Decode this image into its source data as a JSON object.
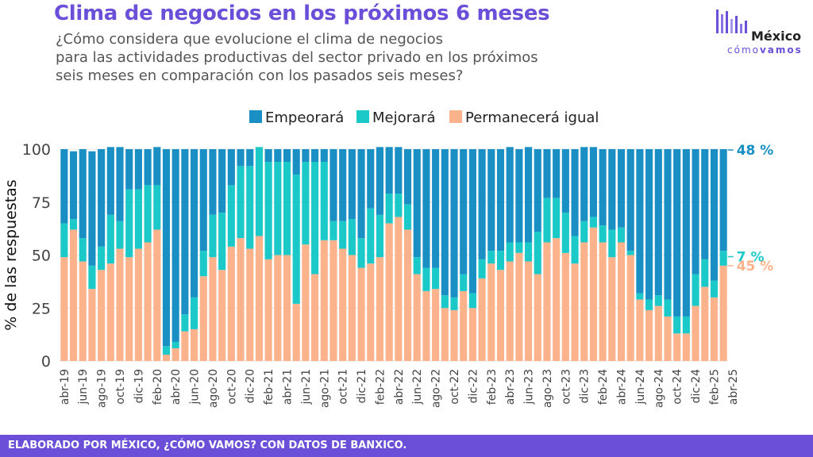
{
  "header": {
    "title": "Clima de negocios en los próximos 6 meses",
    "subtitle_lines": [
      "¿Cómo considera que evolucione el clima de negocios",
      "para las actividades productivas del sector privado en los próximos",
      "seis meses en comparación con los pasados seis meses?"
    ]
  },
  "logo": {
    "word1": "México",
    "word2_light": "cómo",
    "word2_bold": "vamos"
  },
  "footer": {
    "text": "ELABORADO POR MÉXICO, ¿CÓMO VAMOS? CON DATOS DE BANXICO."
  },
  "colors": {
    "empeorara": "#1a8fc4",
    "mejorara": "#1cc9c9",
    "permanecera": "#fcb38c",
    "title": "#6b4fd8"
  },
  "chart_data": {
    "type": "bar",
    "stacked": true,
    "ylabel": "% de las respuestas",
    "xlabel": "",
    "ylim": [
      0,
      100
    ],
    "yticks": [
      0,
      25,
      50,
      75,
      100
    ],
    "grid": true,
    "legend_position": "top-center",
    "x_start": "abr-19",
    "x_end": "abr-25",
    "xtick_labels": [
      "abr-19",
      "jun-19",
      "ago-19",
      "oct-19",
      "dic-19",
      "feb-20",
      "abr-20",
      "jun-20",
      "ago-20",
      "oct-20",
      "dic-20",
      "feb-21",
      "abr-21",
      "jun-21",
      "ago-21",
      "oct-21",
      "dic-21",
      "feb-22",
      "abr-22",
      "jun-22",
      "ago-22",
      "oct-22",
      "dic-22",
      "feb-23",
      "abr-23",
      "jun-23",
      "ago-23",
      "oct-23",
      "dic-23",
      "feb-24",
      "abr-24",
      "jun-24",
      "ago-24",
      "oct-24",
      "dic-24",
      "feb-25",
      "abr-25"
    ],
    "series": [
      {
        "name": "Permanecerá igual",
        "values": [
          49,
          62,
          47,
          34,
          43,
          46,
          53,
          49,
          53,
          56,
          62,
          3,
          6,
          14,
          15,
          40,
          49,
          43,
          54,
          58,
          53,
          59,
          48,
          50,
          50,
          27,
          55,
          41,
          57,
          57,
          53,
          50,
          44,
          46,
          49,
          65,
          68,
          62,
          41,
          33,
          34,
          25,
          24,
          33,
          25,
          39,
          46,
          43,
          47,
          51,
          47,
          41,
          56,
          58,
          51,
          46,
          56,
          63,
          56,
          49,
          56,
          50,
          29,
          24,
          26,
          21,
          13,
          13,
          26,
          35,
          30,
          45
        ]
      },
      {
        "name": "Mejorará",
        "values": [
          16,
          5,
          11,
          11,
          11,
          23,
          13,
          32,
          28,
          27,
          21,
          4,
          3,
          8,
          15,
          12,
          20,
          27,
          29,
          34,
          39,
          42,
          46,
          44,
          44,
          61,
          39,
          53,
          37,
          9,
          13,
          17,
          14,
          26,
          20,
          14,
          11,
          12,
          8,
          11,
          10,
          6,
          6,
          8,
          7,
          9,
          6,
          9,
          9,
          5,
          9,
          20,
          21,
          19,
          19,
          13,
          10,
          5,
          8,
          13,
          7,
          2,
          3,
          5,
          5,
          8,
          8,
          8,
          15,
          13,
          8,
          7
        ]
      },
      {
        "name": "Empeorará",
        "values": [
          35,
          32,
          42,
          54,
          46,
          32,
          35,
          19,
          19,
          17,
          18,
          93,
          91,
          78,
          70,
          48,
          31,
          30,
          17,
          8,
          8,
          0,
          6,
          6,
          6,
          12,
          6,
          6,
          6,
          34,
          34,
          33,
          42,
          28,
          32,
          22,
          22,
          26,
          51,
          56,
          56,
          69,
          70,
          59,
          68,
          52,
          48,
          48,
          45,
          44,
          45,
          39,
          23,
          23,
          30,
          41,
          35,
          33,
          36,
          38,
          37,
          48,
          68,
          71,
          69,
          71,
          79,
          79,
          59,
          52,
          62,
          48
        ]
      }
    ],
    "end_labels": [
      {
        "series": "Empeorará",
        "text": "48 %"
      },
      {
        "series": "Mejorará",
        "text": "7 %"
      },
      {
        "series": "Permanecerá igual",
        "text": "45 %"
      }
    ]
  }
}
